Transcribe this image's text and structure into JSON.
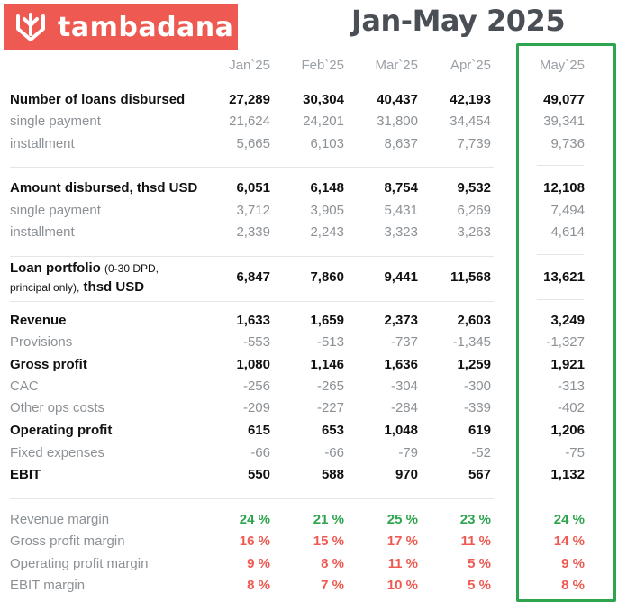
{
  "brand": {
    "name": "tambadana",
    "bg_color": "#ee5a52",
    "icon": "tambadana-logo-icon"
  },
  "period_title": "Jan-May 2025",
  "columns": [
    "Jan`25",
    "Feb`25",
    "Mar`25",
    "Apr`25",
    "May`25"
  ],
  "highlight_color": "#2ea44f",
  "sections": {
    "loans": {
      "label": "Number of loans disbursed",
      "values": [
        "27,289",
        "30,304",
        "40,437",
        "42,193",
        "49,077"
      ],
      "single": {
        "label": "single payment",
        "values": [
          "21,624",
          "24,201",
          "31,800",
          "34,454",
          "39,341"
        ]
      },
      "installment": {
        "label": "installment",
        "values": [
          "5,665",
          "6,103",
          "8,637",
          "7,739",
          "9,736"
        ]
      }
    },
    "amount": {
      "label": "Amount disbursed, thsd USD",
      "values": [
        "6,051",
        "6,148",
        "8,754",
        "9,532",
        "12,108"
      ],
      "single": {
        "label": "single payment",
        "values": [
          "3,712",
          "3,905",
          "5,431",
          "6,269",
          "7,494"
        ]
      },
      "installment": {
        "label": "installment",
        "values": [
          "2,339",
          "2,243",
          "3,323",
          "3,263",
          "4,614"
        ]
      }
    },
    "portfolio": {
      "label_main": "Loan portfolio",
      "label_note1": "(0-30 DPD,",
      "label_note2": "principal only),",
      "label_unit": "thsd USD",
      "values": [
        "6,847",
        "7,860",
        "9,441",
        "11,568",
        "13,621"
      ]
    },
    "pnl": {
      "revenue": {
        "label": "Revenue",
        "values": [
          "1,633",
          "1,659",
          "2,373",
          "2,603",
          "3,249"
        ]
      },
      "provisions": {
        "label": "Provisions",
        "values": [
          "-553",
          "-513",
          "-737",
          "-1,345",
          "-1,327"
        ]
      },
      "gross_profit": {
        "label": "Gross profit",
        "values": [
          "1,080",
          "1,146",
          "1,636",
          "1,259",
          "1,921"
        ]
      },
      "cac": {
        "label": "CAC",
        "values": [
          "-256",
          "-265",
          "-304",
          "-300",
          "-313"
        ]
      },
      "other_ops": {
        "label": "Other ops costs",
        "values": [
          "-209",
          "-227",
          "-284",
          "-339",
          "-402"
        ]
      },
      "operating_profit": {
        "label": "Operating profit",
        "values": [
          "615",
          "653",
          "1,048",
          "619",
          "1,206"
        ]
      },
      "fixed": {
        "label": "Fixed expenses",
        "values": [
          "-66",
          "-66",
          "-79",
          "-52",
          "-75"
        ]
      },
      "ebit": {
        "label": "EBIT",
        "values": [
          "550",
          "588",
          "970",
          "567",
          "1,132"
        ]
      }
    },
    "margins": {
      "revenue_margin": {
        "label": "Revenue margin",
        "color": "#2ea44f",
        "values": [
          "24 %",
          "21 %",
          "25 %",
          "23 %",
          "24 %"
        ]
      },
      "gross_margin": {
        "label": "Gross profit margin",
        "color": "#ee5a52",
        "values": [
          "16 %",
          "15 %",
          "17 %",
          "11 %",
          "14 %"
        ]
      },
      "operating_margin": {
        "label": "Operating profit margin",
        "color": "#ee5a52",
        "values": [
          "9 %",
          "8 %",
          "11 %",
          "5 %",
          "9 %"
        ]
      },
      "ebit_margin": {
        "label": "EBIT margin",
        "color": "#ee5a52",
        "values": [
          "8 %",
          "7 %",
          "10 %",
          "5 %",
          "8 %"
        ]
      }
    }
  }
}
